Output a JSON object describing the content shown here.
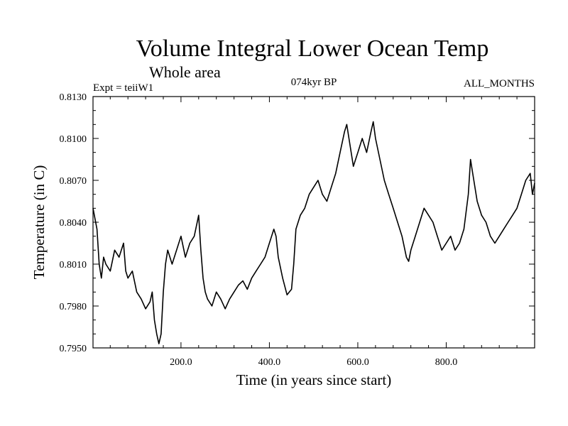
{
  "chart_data": {
    "type": "line",
    "title": "Volume Integral Lower Ocean Temp",
    "subtitle": "Whole area",
    "annotations": {
      "left": "Expt = teiiW1",
      "center": "074kyr BP",
      "right": "ALL_MONTHS"
    },
    "xlabel": "Time (in years since start)",
    "ylabel": "Temperature (in C)",
    "xlim": [
      1,
      1000
    ],
    "ylim": [
      0.795,
      0.813
    ],
    "xticks": [
      {
        "value": 200,
        "label": "200.0"
      },
      {
        "value": 400,
        "label": "400.0"
      },
      {
        "value": 600,
        "label": "600.0"
      },
      {
        "value": 800,
        "label": "800.0"
      }
    ],
    "yticks": [
      {
        "value": 0.795,
        "label": "0.7950"
      },
      {
        "value": 0.798,
        "label": "0.7980"
      },
      {
        "value": 0.801,
        "label": "0.8010"
      },
      {
        "value": 0.804,
        "label": "0.8040"
      },
      {
        "value": 0.807,
        "label": "0.8070"
      },
      {
        "value": 0.81,
        "label": "0.8100"
      },
      {
        "value": 0.813,
        "label": "0.8130"
      }
    ],
    "grid": false,
    "line_color": "#000000",
    "series": [
      {
        "x": [
          1,
          10,
          15,
          20,
          25,
          30,
          40,
          50,
          60,
          70,
          75,
          80,
          90,
          100,
          110,
          120,
          130,
          135,
          140,
          145,
          150,
          155,
          160,
          165,
          170,
          180,
          190,
          200,
          210,
          220,
          230,
          240,
          245,
          250,
          255,
          260,
          270,
          280,
          290,
          300,
          310,
          320,
          330,
          340,
          350,
          360,
          370,
          380,
          390,
          400,
          410,
          415,
          420,
          430,
          440,
          450,
          455,
          460,
          470,
          480,
          490,
          500,
          510,
          520,
          530,
          540,
          550,
          560,
          570,
          575,
          580,
          590,
          600,
          610,
          620,
          630,
          635,
          640,
          650,
          660,
          670,
          680,
          690,
          700,
          710,
          715,
          720,
          730,
          740,
          750,
          760,
          770,
          780,
          790,
          800,
          810,
          820,
          830,
          840,
          850,
          855,
          860,
          870,
          880,
          890,
          900,
          910,
          920,
          930,
          940,
          950,
          960,
          970,
          980,
          990,
          995,
          1000
        ],
        "y": [
          0.805,
          0.8035,
          0.801,
          0.8,
          0.8015,
          0.801,
          0.8005,
          0.802,
          0.8015,
          0.8025,
          0.8005,
          0.8,
          0.8005,
          0.799,
          0.7985,
          0.7978,
          0.7983,
          0.799,
          0.797,
          0.796,
          0.7953,
          0.796,
          0.799,
          0.801,
          0.802,
          0.801,
          0.802,
          0.803,
          0.8015,
          0.8025,
          0.803,
          0.8045,
          0.802,
          0.8,
          0.799,
          0.7985,
          0.798,
          0.799,
          0.7985,
          0.7978,
          0.7985,
          0.799,
          0.7995,
          0.7998,
          0.7992,
          0.8,
          0.8005,
          0.801,
          0.8015,
          0.8025,
          0.8035,
          0.803,
          0.8015,
          0.8,
          0.7988,
          0.7992,
          0.801,
          0.8035,
          0.8045,
          0.805,
          0.806,
          0.8065,
          0.807,
          0.806,
          0.8055,
          0.8065,
          0.8075,
          0.809,
          0.8105,
          0.811,
          0.81,
          0.808,
          0.809,
          0.81,
          0.809,
          0.8105,
          0.8112,
          0.81,
          0.8085,
          0.807,
          0.806,
          0.805,
          0.804,
          0.803,
          0.8015,
          0.8012,
          0.802,
          0.803,
          0.804,
          0.805,
          0.8045,
          0.804,
          0.803,
          0.802,
          0.8025,
          0.803,
          0.802,
          0.8025,
          0.8035,
          0.806,
          0.8085,
          0.8075,
          0.8055,
          0.8045,
          0.804,
          0.803,
          0.8025,
          0.803,
          0.8035,
          0.804,
          0.8045,
          0.805,
          0.806,
          0.807,
          0.8075,
          0.806,
          0.8068
        ]
      }
    ]
  }
}
